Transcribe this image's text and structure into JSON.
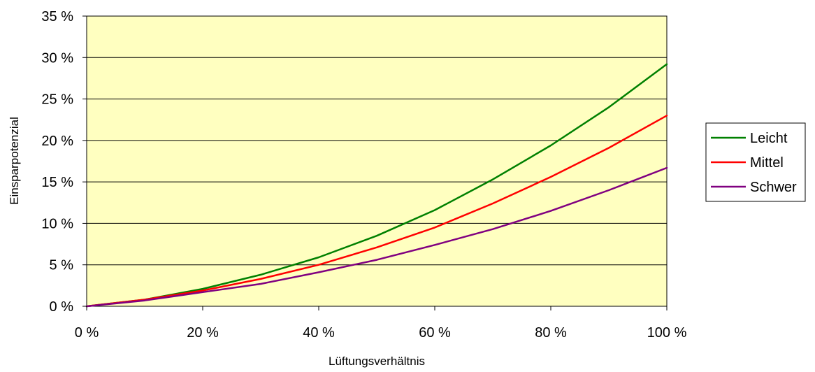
{
  "chart_data": {
    "type": "line",
    "title": "",
    "xlabel": "Lüftungsverhältnis",
    "ylabel": "Einsparpotenzial",
    "xlim": [
      0,
      100
    ],
    "ylim": [
      0,
      35
    ],
    "x_ticks": [
      0,
      20,
      40,
      60,
      80,
      100
    ],
    "y_ticks": [
      0,
      5,
      10,
      15,
      20,
      25,
      30,
      35
    ],
    "x_tick_labels": [
      "0 %",
      "20 %",
      "40 %",
      "60 %",
      "80 %",
      "100 %"
    ],
    "y_tick_labels": [
      "0 %",
      "5 %",
      "10 %",
      "15 %",
      "20 %",
      "25 %",
      "30 %",
      "35 %"
    ],
    "grid": "horizontal",
    "legend_position": "right",
    "plot_background": "#FFFFC0",
    "x": [
      0,
      10,
      20,
      30,
      40,
      50,
      60,
      70,
      80,
      90,
      100
    ],
    "series": [
      {
        "name": "Leicht",
        "color": "#008000",
        "values": [
          0,
          0.8,
          2.1,
          3.8,
          5.9,
          8.5,
          11.6,
          15.3,
          19.4,
          24.0,
          29.2
        ]
      },
      {
        "name": "Mittel",
        "color": "#FF0000",
        "values": [
          0,
          0.8,
          1.9,
          3.3,
          5.0,
          7.1,
          9.5,
          12.4,
          15.6,
          19.1,
          23.0
        ]
      },
      {
        "name": "Schwer",
        "color": "#800080",
        "values": [
          0,
          0.7,
          1.7,
          2.7,
          4.1,
          5.6,
          7.4,
          9.3,
          11.5,
          14.0,
          16.7
        ]
      }
    ]
  }
}
